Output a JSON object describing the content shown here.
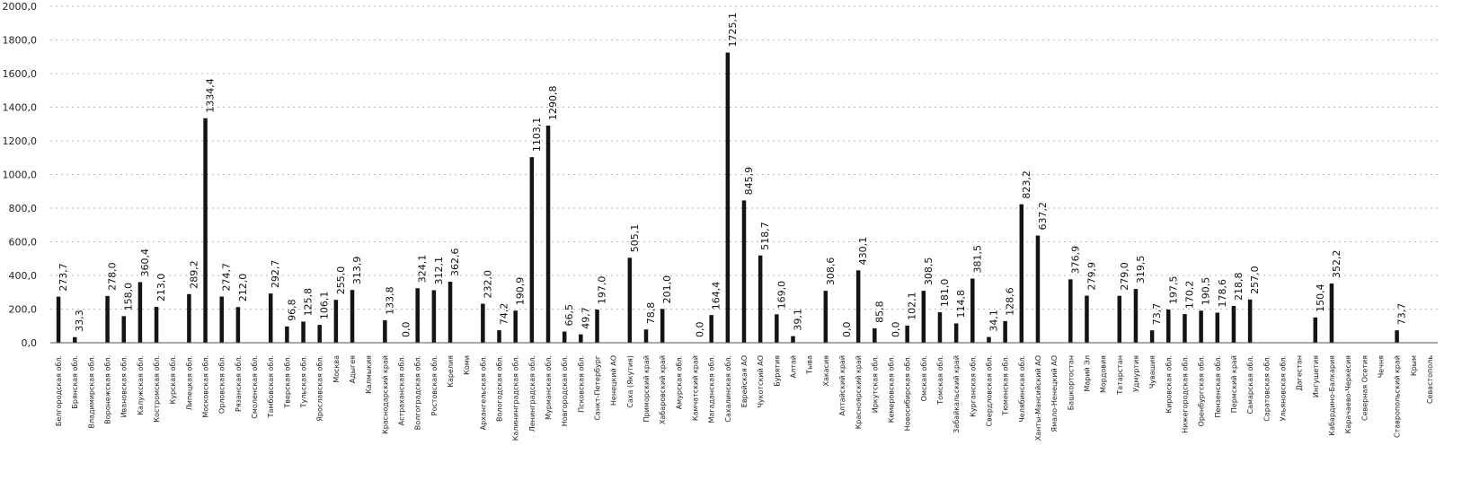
{
  "chart_data": {
    "type": "bar",
    "title": "",
    "xlabel": "",
    "ylabel": "",
    "ylim": [
      0,
      2000
    ],
    "yticks": [
      "0,0",
      "200,0",
      "400,0",
      "600,0",
      "800,0",
      "1000,0",
      "1200,0",
      "1400,0",
      "1600,0",
      "1800,0",
      "2000,0"
    ],
    "grid": true,
    "legend": "none",
    "bar_color": "#141414",
    "categories": [
      "Белгородская обл.",
      "Брянская обл.",
      "Владимирская обл.",
      "Воронежская обл.",
      "Ивановская обл.",
      "Калужская обл.",
      "Костромская обл.",
      "Курская обл.",
      "Липецкая обл.",
      "Московская обл.",
      "Орловская обл.",
      "Рязанская обл.",
      "Смоленская обл.",
      "Тамбовская обл.",
      "Тверская обл.",
      "Тульская обл.",
      "Ярославская обл.",
      "Москва",
      "Адыгея",
      "Калмыкия",
      "Краснодарский край",
      "Астраханская обл.",
      "Волгоградская обл.",
      "Ростовская обл.",
      "Карелия",
      "Коми",
      "Архангельская обл.",
      "Вологодская обл.",
      "Калининградская обл.",
      "Ленинградская обл.",
      "Мурманская обл.",
      "Новгородская обл.",
      "Псковская обл.",
      "Санкт-Петербург",
      "Ненецкий АО",
      "Саха (Якутия)",
      "Приморский край",
      "Хабаровский край",
      "Амурская обл.",
      "Камчатский край",
      "Магаданская обл.",
      "Сахалинская обл.",
      "Еврейская АО",
      "Чукотский АО",
      "Бурятия",
      "Алтай",
      "Тыва",
      "Хакасия",
      "Алтайский край",
      "Красноярский край",
      "Иркутская обл.",
      "Кемеровская обл.",
      "Новосибирская обл.",
      "Омская обл.",
      "Томская обл.",
      "Забайкальский край",
      "Курганская обл.",
      "Свердловская обл.",
      "Тюменская обл.",
      "Челябинская обл.",
      "Ханты-Мансийский АО",
      "Ямало-Ненецкий АО",
      "Башкортостан",
      "Марий Эл",
      "Мордовия",
      "Татарстан",
      "Удмуртия",
      "Чувашия",
      "Кировская обл.",
      "Нижегородская обл.",
      "Оренбургская обл.",
      "Пензенская обл.",
      "Пермский край",
      "Самарская обл.",
      "Саратовская обл.",
      "Ульяновская обл.",
      "Дагестан",
      "Ингушетия",
      "Кабардино-Балкария",
      "Карачаево-Черкесия",
      "Северная Осетия",
      "Чечня",
      "Ставропольский край",
      "Крым",
      "Севастополь"
    ],
    "values": [
      273.7,
      33.3,
      null,
      278.0,
      158.0,
      360.4,
      213.0,
      null,
      289.2,
      1334.4,
      274.7,
      212.0,
      null,
      292.7,
      96.8,
      125.8,
      106.1,
      255.0,
      313.9,
      null,
      133.8,
      0.0,
      324.1,
      312.1,
      362.6,
      null,
      232.0,
      74.2,
      190.9,
      1103.1,
      1290.8,
      66.5,
      49.7,
      197.0,
      null,
      505.1,
      78.8,
      201.0,
      null,
      0.0,
      164.4,
      1725.1,
      845.9,
      518.7,
      169.0,
      39.1,
      null,
      308.6,
      0.0,
      430.1,
      85.8,
      0.0,
      102.1,
      308.5,
      181.0,
      114.8,
      381.5,
      34.1,
      128.6,
      823.2,
      637.2,
      null,
      376.9,
      279.9,
      null,
      279.0,
      319.5,
      73.7,
      197.5,
      170.2,
      190.5,
      178.6,
      218.8,
      257.0,
      null,
      null,
      null,
      150.4,
      352.2,
      null,
      null,
      null,
      73.7,
      null,
      null
    ],
    "data_labels": [
      "273,7",
      "33,3",
      "",
      "278,0",
      "158,0",
      "360,4",
      "213,0",
      "",
      "289,2",
      "1334,4",
      "274,7",
      "212,0",
      "",
      "292,7",
      "96,8",
      "125,8",
      "106,1",
      "255,0",
      "313,9",
      "",
      "133,8",
      "0,0",
      "324,1",
      "312,1",
      "362,6",
      "",
      "232,0",
      "74,2",
      "190,9",
      "1103,1",
      "1290,8",
      "66,5",
      "49,7",
      "197,0",
      "",
      "505,1",
      "78,8",
      "201,0",
      "",
      "0,0",
      "164,4",
      "1725,1",
      "845,9",
      "518,7",
      "169,0",
      "39,1",
      "",
      "308,6",
      "0,0",
      "430,1",
      "85,8",
      "0,0",
      "102,1",
      "308,5",
      "181,0",
      "114,8",
      "381,5",
      "34,1",
      "128,6",
      "823,2",
      "637,2",
      "",
      "376,9",
      "279,9",
      "",
      "279,0",
      "319,5",
      "73,7",
      "197,5",
      "170,2",
      "190,5",
      "178,6",
      "218,8",
      "257,0",
      "",
      "",
      "",
      "150,4",
      "352,2",
      "",
      "",
      "",
      "73,7",
      "",
      ""
    ]
  }
}
